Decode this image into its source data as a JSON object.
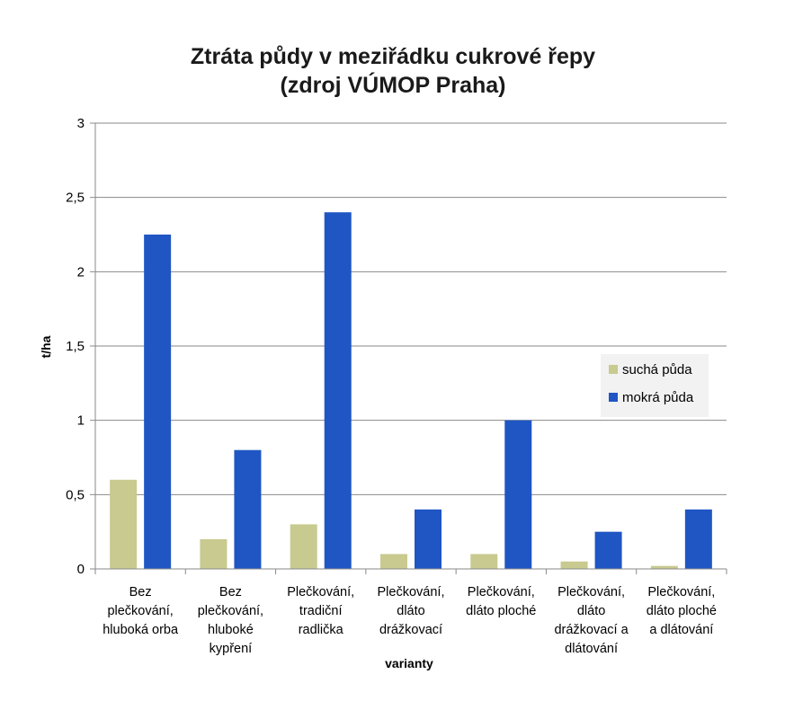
{
  "chart_data": {
    "type": "bar",
    "title": [
      "Ztráta půdy v meziřádku cukrové řepy",
      "(zdroj VÚMOP Praha)"
    ],
    "xlabel": "varianty",
    "ylabel": "t/ha",
    "ylim": [
      0,
      3
    ],
    "yticks": [
      0,
      0.5,
      1,
      1.5,
      2,
      2.5,
      3
    ],
    "ytick_labels": [
      "0",
      "0,5",
      "1",
      "1,5",
      "2",
      "2,5",
      "3"
    ],
    "grid": true,
    "legend_position": "right",
    "categories": [
      [
        "Bez",
        "plečkování,",
        "hluboká orba"
      ],
      [
        "Bez",
        "plečkování,",
        "hluboké",
        "kypření"
      ],
      [
        "Plečkování,",
        "tradiční",
        "radlička"
      ],
      [
        "Plečkování,",
        "dláto",
        "drážkovací"
      ],
      [
        "Plečkování,",
        "dláto ploché"
      ],
      [
        "Plečkování,",
        "dláto",
        "drážkovací a",
        "dlátování"
      ],
      [
        "Plečkování,",
        "dláto ploché",
        "a dlátování"
      ]
    ],
    "series": [
      {
        "name": "suchá půda",
        "color": "#c8ca8f",
        "values": [
          0.6,
          0.2,
          0.3,
          0.1,
          0.1,
          0.05,
          0.02
        ]
      },
      {
        "name": "mokrá půda",
        "color": "#1f56c3",
        "values": [
          2.25,
          0.8,
          2.4,
          0.4,
          1.0,
          0.25,
          0.4
        ]
      }
    ]
  }
}
